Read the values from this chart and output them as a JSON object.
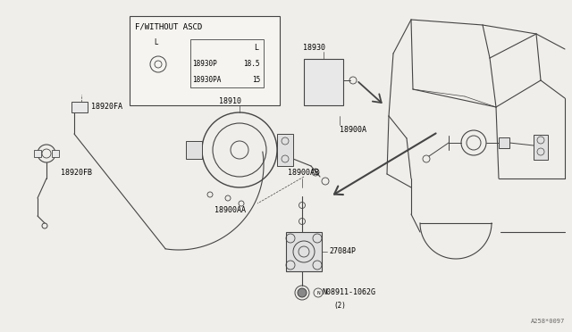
{
  "bg": "#f0eeea",
  "lc": "#444444",
  "tc": "#000000",
  "fig_w": 6.4,
  "fig_h": 3.72,
  "dpi": 100,
  "watermark": "A258*0097",
  "inset_label": "F/WITHOUT ASCD",
  "table_rows": [
    [
      "18930P",
      "18.5"
    ],
    [
      "18930PA",
      "15"
    ]
  ],
  "table_header": "L"
}
